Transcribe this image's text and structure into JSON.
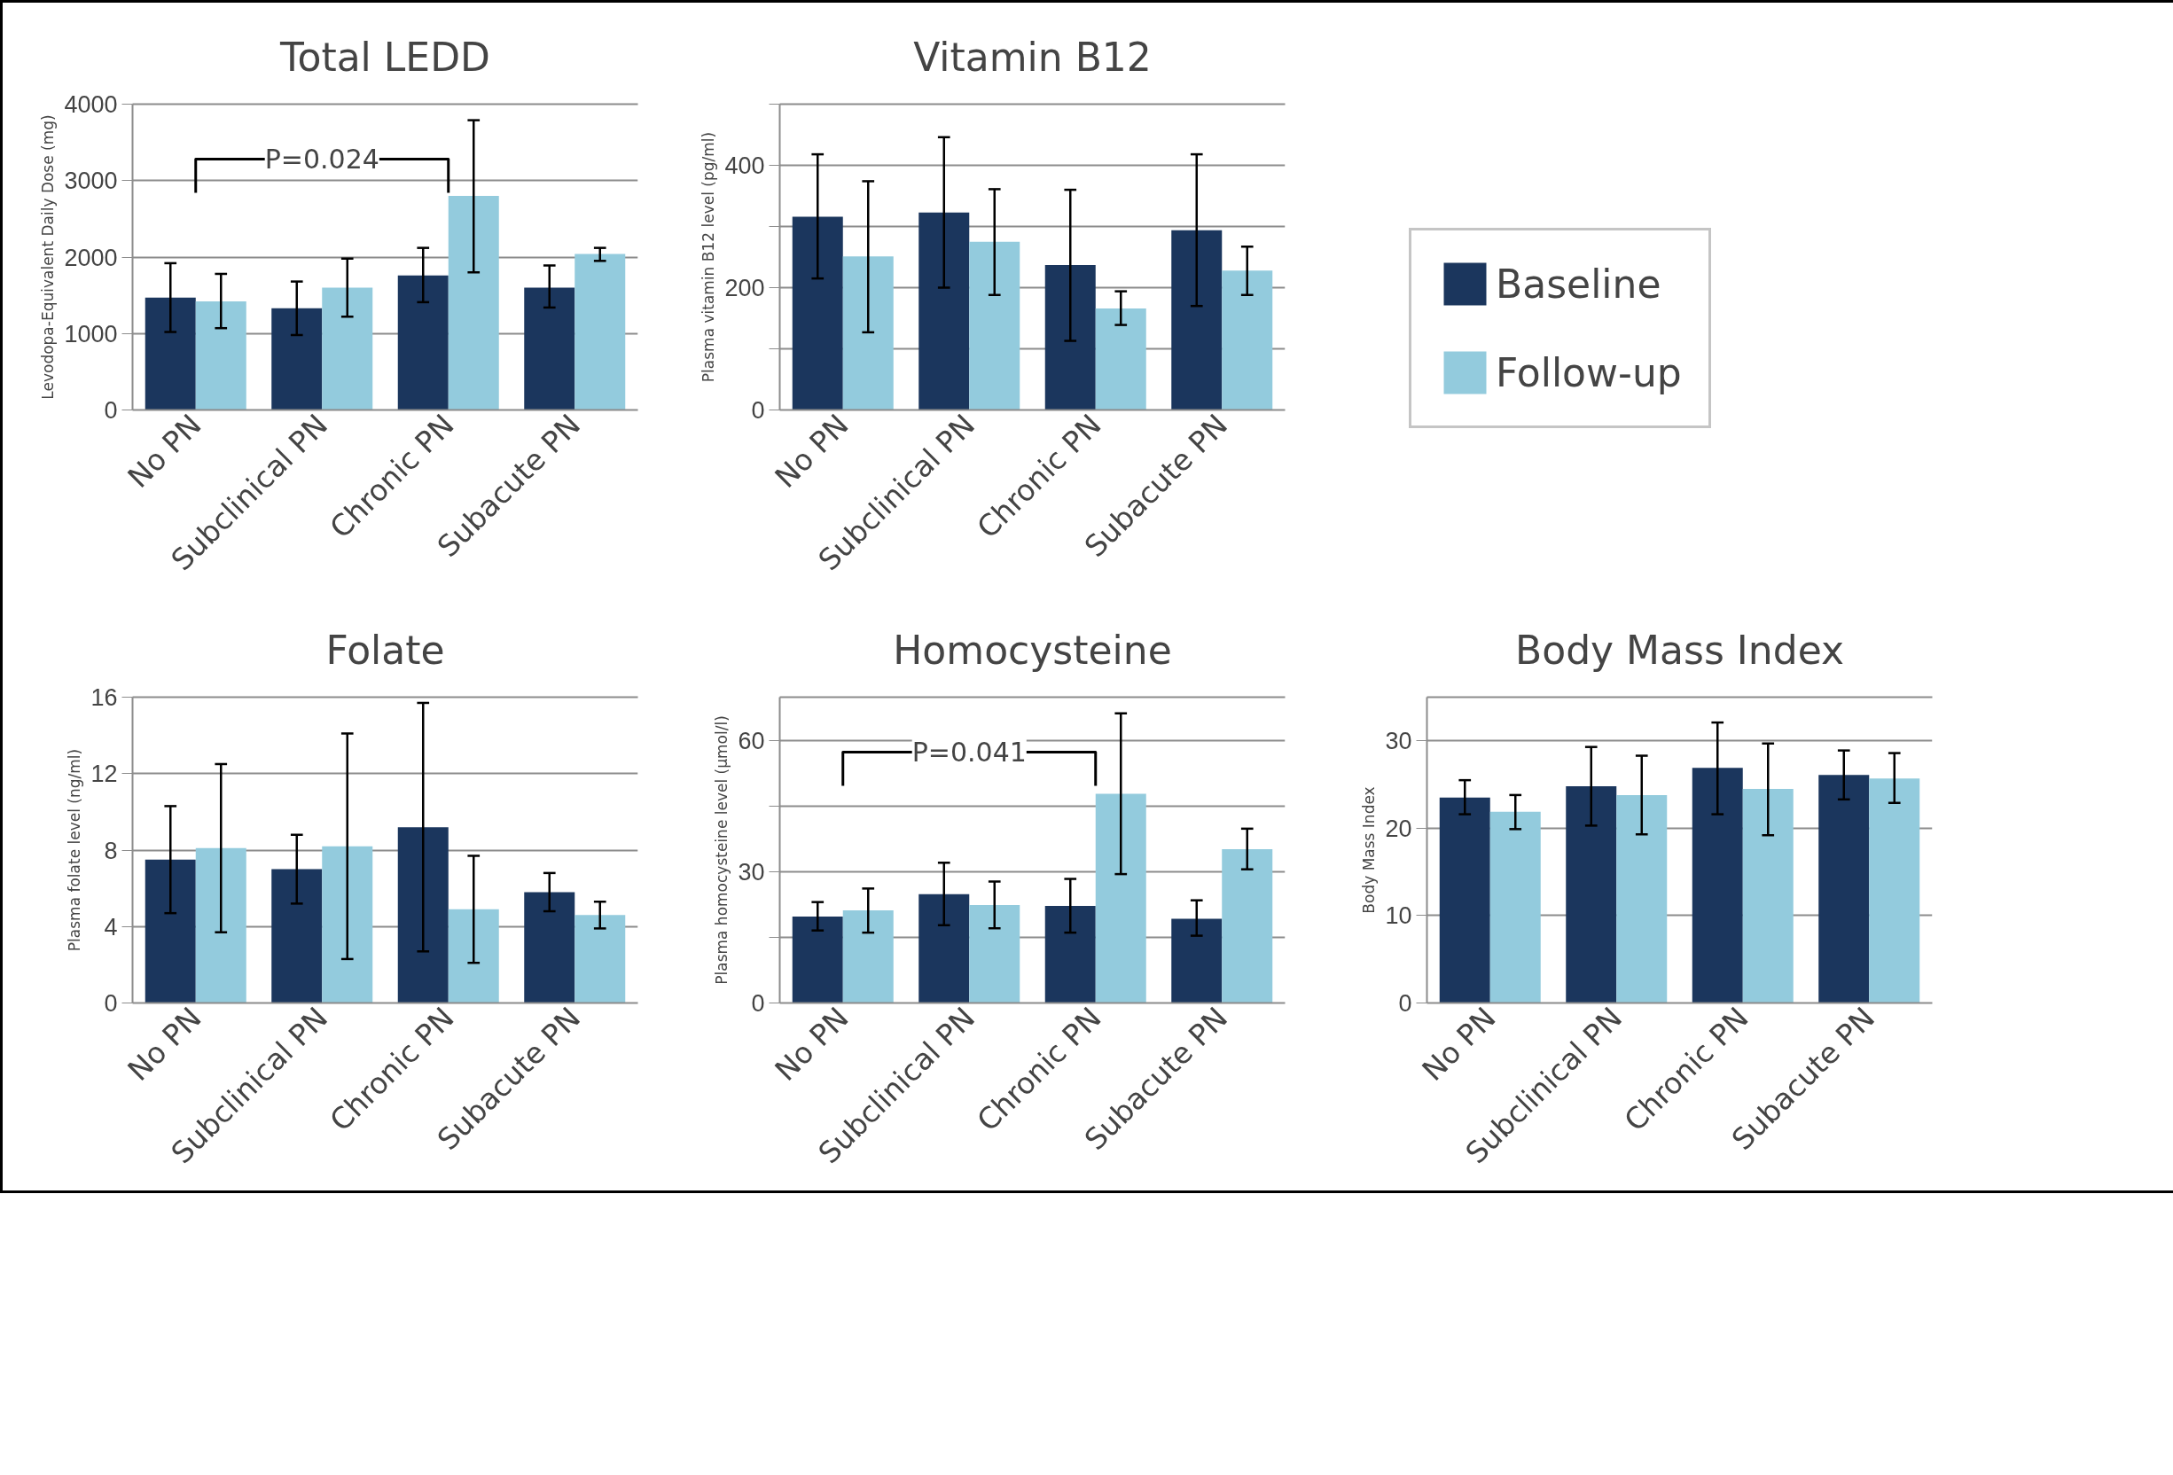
{
  "chart_data": [
    {
      "type": "bar",
      "title": "Total LEDD",
      "ylabel": "Levodopa-Equivalent Daily Dose (mg)",
      "categories": [
        "No PN",
        "Subclinical PN",
        "Chronic PN",
        "Subacute PN"
      ],
      "ylim": [
        0,
        4000
      ],
      "yticks": [
        0,
        1000,
        2000,
        3000,
        4000
      ],
      "grid": "y",
      "annotations": [
        "P=0.024"
      ],
      "series": [
        {
          "color": "#1b365d",
          "values": [
            1470,
            1330,
            1760,
            1600
          ],
          "errors": [
            [
              1020,
              1920
            ],
            [
              980,
              1680
            ],
            [
              1410,
              2120
            ],
            [
              1340,
              1890
            ]
          ]
        },
        {
          "color": "#93cbdd",
          "values": [
            1420,
            1600,
            2800,
            2040
          ],
          "errors": [
            [
              1070,
              1780
            ],
            [
              1220,
              1980
            ],
            [
              1800,
              3790
            ],
            [
              1950,
              2120
            ]
          ]
        }
      ]
    },
    {
      "type": "bar",
      "title": "Vitamin B12",
      "ylabel": "Plasma vitamin B12 level (pg/ml)",
      "categories": [
        "No PN",
        "Subclinical PN",
        "Chronic PN",
        "Subacute PN"
      ],
      "ylim": [
        0,
        500
      ],
      "yticks": [
        0,
        {
          "value": 100,
          "label": null
        },
        200,
        {
          "value": 300,
          "label": null
        },
        400,
        {
          "value": 500,
          "label": null
        }
      ],
      "grid": "y",
      "legend": "right",
      "series": [
        {
          "name": "Baseline",
          "color": "#1b365d",
          "values": [
            316,
            323,
            237,
            294
          ],
          "errors": [
            [
              215,
              418
            ],
            [
              200,
              446
            ],
            [
              113,
              360
            ],
            [
              170,
              418
            ]
          ]
        },
        {
          "name": "Follow-up",
          "color": "#93cbdd",
          "values": [
            251,
            275,
            166,
            228
          ],
          "errors": [
            [
              127,
              374
            ],
            [
              188,
              361
            ],
            [
              139,
              194
            ],
            [
              188,
              267
            ]
          ]
        }
      ]
    },
    {
      "type": "bar",
      "title": "Folate",
      "ylabel": "Plasma folate level (ng/ml)",
      "categories": [
        "No PN",
        "Subclinical PN",
        "Chronic PN",
        "Subacute PN"
      ],
      "ylim": [
        0,
        16
      ],
      "yticks": [
        0,
        4,
        8,
        12,
        16
      ],
      "grid": "y",
      "series": [
        {
          "color": "#1b365d",
          "values": [
            7.5,
            7.0,
            9.2,
            5.8
          ],
          "errors": [
            [
              4.7,
              10.3
            ],
            [
              5.2,
              8.8
            ],
            [
              2.7,
              15.7
            ],
            [
              4.8,
              6.8
            ]
          ]
        },
        {
          "color": "#93cbdd",
          "values": [
            8.1,
            8.2,
            4.9,
            4.6
          ],
          "errors": [
            [
              3.7,
              12.5
            ],
            [
              2.3,
              14.1
            ],
            [
              2.1,
              7.7
            ],
            [
              3.9,
              5.3
            ]
          ]
        }
      ]
    },
    {
      "type": "bar",
      "title": "Homocysteine",
      "ylabel": "Plasma homocysteine level (µmol/l)",
      "categories": [
        "No PN",
        "Subclinical PN",
        "Chronic PN",
        "Subacute PN"
      ],
      "ylim": [
        0,
        70
      ],
      "yticks": [
        0,
        {
          "value": 15,
          "label": null
        },
        30,
        {
          "value": 45,
          "label": null
        },
        60
      ],
      "grid": "y",
      "annotations": [
        "P=0.041"
      ],
      "series": [
        {
          "color": "#1b365d",
          "values": [
            19.8,
            24.9,
            22.2,
            19.3
          ],
          "errors": [
            [
              16.6,
              23.1
            ],
            [
              17.8,
              32.1
            ],
            [
              16.1,
              28.4
            ],
            [
              15.4,
              23.5
            ]
          ]
        },
        {
          "color": "#93cbdd",
          "values": [
            21.2,
            22.4,
            47.9,
            35.2
          ],
          "errors": [
            [
              16.1,
              26.2
            ],
            [
              17.1,
              27.8
            ],
            [
              29.5,
              66.3
            ],
            [
              30.6,
              39.9
            ]
          ]
        }
      ]
    },
    {
      "type": "bar",
      "title": "Body Mass Index",
      "ylabel": "Body Mass Index",
      "categories": [
        "No PN",
        "Subclinical PN",
        "Chronic PN",
        "Subacute PN"
      ],
      "ylim": [
        0,
        35
      ],
      "yticks": [
        0,
        10,
        20,
        30
      ],
      "grid": "y",
      "series": [
        {
          "color": "#1b365d",
          "values": [
            23.5,
            24.8,
            26.9,
            26.1
          ],
          "errors": [
            [
              21.6,
              25.5
            ],
            [
              20.3,
              29.3
            ],
            [
              21.6,
              32.1
            ],
            [
              23.3,
              28.9
            ]
          ]
        },
        {
          "color": "#93cbdd",
          "values": [
            21.9,
            23.8,
            24.5,
            25.7
          ],
          "errors": [
            [
              19.9,
              23.8
            ],
            [
              19.3,
              28.3
            ],
            [
              19.2,
              29.7
            ],
            [
              22.9,
              28.6
            ]
          ]
        }
      ]
    }
  ]
}
